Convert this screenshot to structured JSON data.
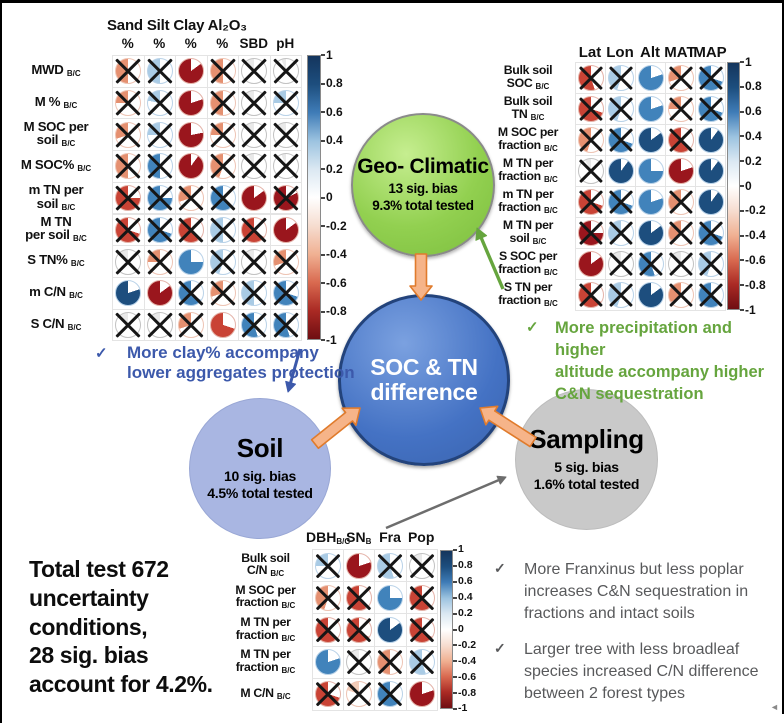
{
  "colors": {
    "geo_circle": "#92d050",
    "center_circle": "#4472c4",
    "soil_circle": "#a9b6e2",
    "sampling_circle": "#c9c9c9",
    "connector_fill": "#f6b489",
    "connector_stroke": "#e07b2c",
    "blue_note": "#3c59ab",
    "green_note": "#66a53e",
    "gray_note": "#58595b",
    "gray_arrow": "#6d6d6d"
  },
  "palette": {
    "dr": "#9a161d",
    "r": "#c94335",
    "o": "#e59070",
    "lo": "#f3cdb9",
    "w": "#e9e9e9",
    "lb": "#a9cbe5",
    "b": "#4183bb",
    "db": "#1d4e7e"
  },
  "colorbar": {
    "ticks": [
      "1",
      "0.8",
      "0.6",
      "0.4",
      "0.2",
      "0",
      "-0.2",
      "-0.4",
      "-0.6",
      "-0.8",
      "-1"
    ],
    "range": [
      -1,
      1
    ]
  },
  "chart_data": {
    "type": "heatmap",
    "subtype": "correlation-pie-matrix",
    "encoding": {
      "pie_fill_fraction": "absolute correlation magnitude |r|",
      "color": "blue shades = positive, red/orange shades = negative, near-white = ~0",
      "x_mark": "crossed cells are not significant"
    },
    "matrices": {
      "left": {
        "title": "Sand Silt Clay Al₂O₃",
        "cols": [
          {
            "t": "%"
          },
          {
            "t": "%"
          },
          {
            "t": "%"
          },
          {
            "t": "%"
          },
          {
            "t": "SBD"
          },
          {
            "t": "pH"
          }
        ],
        "rows": [
          {
            "lines": [
              "MWD"
            ],
            "sub": "B/C"
          },
          {
            "lines": [
              "M %"
            ],
            "sub": "B/C"
          },
          {
            "lines": [
              "M SOC per",
              "soil"
            ],
            "sub": "B/C"
          },
          {
            "lines": [
              "M SOC%"
            ],
            "sub": "B/C"
          },
          {
            "lines": [
              "m TN per",
              "soil"
            ],
            "sub": "B/C"
          },
          {
            "lines": [
              "M TN",
              "per soil"
            ],
            "sub": "B/C"
          },
          {
            "lines": [
              "S TN%"
            ],
            "sub": "B/C"
          },
          {
            "lines": [
              "m C/N"
            ],
            "sub": "B/C"
          },
          {
            "lines": [
              "S C/N"
            ],
            "sub": "B/C"
          }
        ],
        "cells": [
          [
            [
              0.5,
              "o",
              1
            ],
            [
              0.5,
              "lb",
              1
            ],
            [
              0.85,
              "dr",
              0
            ],
            [
              0.5,
              "o",
              1
            ],
            [
              0.1,
              "w",
              1
            ],
            [
              0.06,
              "w",
              1
            ]
          ],
          [
            [
              0.25,
              "o",
              1
            ],
            [
              0.22,
              "lb",
              1
            ],
            [
              0.8,
              "dr",
              0
            ],
            [
              0.5,
              "o",
              1
            ],
            [
              0.12,
              "w",
              1
            ],
            [
              0.25,
              "lb",
              1
            ]
          ],
          [
            [
              0.3,
              "o",
              1
            ],
            [
              0.25,
              "lb",
              1
            ],
            [
              0.78,
              "dr",
              0
            ],
            [
              0.25,
              "o",
              1
            ],
            [
              0.15,
              "w",
              1
            ],
            [
              0.12,
              "w",
              1
            ]
          ],
          [
            [
              0.5,
              "o",
              1
            ],
            [
              0.5,
              "b",
              1
            ],
            [
              0.9,
              "dr",
              0
            ],
            [
              0.45,
              "o",
              1
            ],
            [
              0.08,
              "w",
              1
            ],
            [
              0.06,
              "w",
              1
            ]
          ],
          [
            [
              0.75,
              "r",
              1
            ],
            [
              0.75,
              "b",
              1
            ],
            [
              0.3,
              "o",
              1
            ],
            [
              0.6,
              "b",
              1
            ],
            [
              0.85,
              "dr",
              0
            ],
            [
              0.82,
              "dr",
              1
            ]
          ],
          [
            [
              0.7,
              "r",
              1
            ],
            [
              0.7,
              "b",
              1
            ],
            [
              0.6,
              "r",
              1
            ],
            [
              0.5,
              "lb",
              1
            ],
            [
              0.65,
              "r",
              1
            ],
            [
              0.85,
              "dr",
              0
            ]
          ],
          [
            [
              0.1,
              "w",
              1
            ],
            [
              0.25,
              "o",
              1
            ],
            [
              0.75,
              "b",
              0
            ],
            [
              0.45,
              "lb",
              1
            ],
            [
              0.1,
              "w",
              1
            ],
            [
              0.3,
              "o",
              1
            ]
          ],
          [
            [
              0.8,
              "db",
              0
            ],
            [
              0.85,
              "dr",
              0
            ],
            [
              0.65,
              "b",
              1
            ],
            [
              0.3,
              "o",
              1
            ],
            [
              0.5,
              "lb",
              1
            ],
            [
              0.7,
              "b",
              1
            ]
          ],
          [
            [
              0.1,
              "w",
              1
            ],
            [
              0.1,
              "w",
              1
            ],
            [
              0.3,
              "o",
              1
            ],
            [
              0.7,
              "r",
              0
            ],
            [
              0.55,
              "b",
              1
            ],
            [
              0.55,
              "b",
              1
            ]
          ]
        ]
      },
      "right": {
        "title": "",
        "cols": [
          {
            "t": "Lat"
          },
          {
            "t": "Lon"
          },
          {
            "t": "Alt"
          },
          {
            "t": "MAT"
          },
          {
            "t": "MAP"
          }
        ],
        "rows": [
          {
            "lines": [
              "Bulk soil",
              "SOC"
            ],
            "sub": "B/C"
          },
          {
            "lines": [
              "Bulk soil",
              "TN"
            ],
            "sub": "B/C"
          },
          {
            "lines": [
              "M SOC per",
              "fraction"
            ],
            "sub": "B/C"
          },
          {
            "lines": [
              "M TN per",
              "fraction"
            ],
            "sub": "B/C"
          },
          {
            "lines": [
              "m TN per",
              "fraction"
            ],
            "sub": "B/C"
          },
          {
            "lines": [
              "M TN per",
              "soil"
            ],
            "sub": "B/C"
          },
          {
            "lines": [
              "S SOC per",
              "fraction"
            ],
            "sub": "B/C"
          },
          {
            "lines": [
              "S TN per",
              "fraction"
            ],
            "sub": "B/C"
          }
        ],
        "cells": [
          [
            [
              0.55,
              "r",
              1
            ],
            [
              0.45,
              "lb",
              1
            ],
            [
              0.8,
              "b",
              0
            ],
            [
              0.3,
              "o",
              1
            ],
            [
              0.7,
              "b",
              1
            ]
          ],
          [
            [
              0.7,
              "r",
              1
            ],
            [
              0.45,
              "lb",
              1
            ],
            [
              0.8,
              "b",
              0
            ],
            [
              0.25,
              "o",
              1
            ],
            [
              0.7,
              "b",
              1
            ]
          ],
          [
            [
              0.45,
              "o",
              1
            ],
            [
              0.7,
              "b",
              1
            ],
            [
              0.85,
              "db",
              0
            ],
            [
              0.6,
              "r",
              1
            ],
            [
              0.9,
              "db",
              0
            ]
          ],
          [
            [
              0.08,
              "w",
              1
            ],
            [
              0.9,
              "db",
              0
            ],
            [
              0.75,
              "b",
              0
            ],
            [
              0.8,
              "dr",
              0
            ],
            [
              0.9,
              "db",
              0
            ]
          ],
          [
            [
              0.7,
              "r",
              1
            ],
            [
              0.7,
              "b",
              1
            ],
            [
              0.8,
              "b",
              0
            ],
            [
              0.4,
              "o",
              1
            ],
            [
              0.9,
              "db",
              0
            ]
          ],
          [
            [
              0.75,
              "dr",
              1
            ],
            [
              0.4,
              "lb",
              1
            ],
            [
              0.85,
              "db",
              0
            ],
            [
              0.35,
              "o",
              1
            ],
            [
              0.7,
              "b",
              1
            ]
          ],
          [
            [
              0.85,
              "dr",
              0
            ],
            [
              0.1,
              "w",
              1
            ],
            [
              0.55,
              "b",
              1
            ],
            [
              0.1,
              "w",
              1
            ],
            [
              0.45,
              "lb",
              1
            ]
          ],
          [
            [
              0.65,
              "r",
              1
            ],
            [
              0.45,
              "lb",
              1
            ],
            [
              0.85,
              "db",
              0
            ],
            [
              0.35,
              "o",
              1
            ],
            [
              0.6,
              "b",
              1
            ]
          ]
        ]
      },
      "bottom": {
        "title": "",
        "cols": [
          {
            "t": "DBH",
            "s": "B/C"
          },
          {
            "t": "SN",
            "s": "B"
          },
          {
            "t": "Fra"
          },
          {
            "t": "Pop"
          }
        ],
        "rows": [
          {
            "lines": [
              "Bulk soil",
              "C/N"
            ],
            "sub": "B/C"
          },
          {
            "lines": [
              "M SOC per",
              "fraction"
            ],
            "sub": "B/C"
          },
          {
            "lines": [
              "M TN per",
              "fraction"
            ],
            "sub": "B/C"
          },
          {
            "lines": [
              "M TN per",
              "fraction"
            ],
            "sub": "B/C"
          },
          {
            "lines": [
              "M C/N"
            ],
            "sub": "B/C"
          }
        ],
        "cells": [
          [
            [
              0.25,
              "lb",
              1
            ],
            [
              0.8,
              "dr",
              0
            ],
            [
              0.55,
              "lb",
              1
            ],
            [
              0.1,
              "w",
              1
            ]
          ],
          [
            [
              0.45,
              "o",
              1
            ],
            [
              0.6,
              "r",
              1
            ],
            [
              0.75,
              "b",
              0
            ],
            [
              0.6,
              "r",
              1
            ]
          ],
          [
            [
              0.6,
              "r",
              1
            ],
            [
              0.65,
              "r",
              1
            ],
            [
              0.85,
              "db",
              0
            ],
            [
              0.65,
              "r",
              1
            ]
          ],
          [
            [
              0.8,
              "b",
              0
            ],
            [
              0.15,
              "w",
              1
            ],
            [
              0.5,
              "o",
              1
            ],
            [
              0.55,
              "lb",
              1
            ]
          ],
          [
            [
              0.7,
              "r",
              1
            ],
            [
              0.2,
              "lo",
              1
            ],
            [
              0.65,
              "b",
              1
            ],
            [
              0.8,
              "dr",
              0
            ]
          ]
        ]
      }
    }
  },
  "circles": {
    "geo": {
      "title": [
        "Geo-",
        "Climatic"
      ],
      "stats": [
        "13 sig. bias",
        "9.3% total tested"
      ]
    },
    "center": {
      "title": [
        "SOC & TN",
        "difference"
      ]
    },
    "soil": {
      "title": [
        "Soil"
      ],
      "stats": [
        "10 sig. bias",
        "4.5% total tested"
      ]
    },
    "sampling": {
      "title": [
        "Sampling"
      ],
      "stats": [
        "5 sig. bias",
        "1.6% total tested"
      ]
    }
  },
  "notes": {
    "check": "✓",
    "blue": {
      "lines": [
        "More clay% accompany",
        "lower aggregates protection"
      ]
    },
    "green": {
      "lines": [
        "More precipitation and higher",
        "altitude accompany higher",
        "C&N sequestration"
      ]
    },
    "gray1": {
      "lines": [
        "More Franxinus but less poplar",
        "increases C&N sequestration in",
        "fractions and intact soils"
      ]
    },
    "gray2": {
      "lines": [
        "Larger tree with less broadleaf",
        "species increased C/N difference",
        "between 2 forest types"
      ]
    }
  },
  "summary": {
    "block1": [
      "Total test 672",
      "uncertainty",
      "conditions,"
    ],
    "block2": [
      "28 sig. bias",
      "account for 4.2%."
    ]
  },
  "corner_mark": "◄"
}
